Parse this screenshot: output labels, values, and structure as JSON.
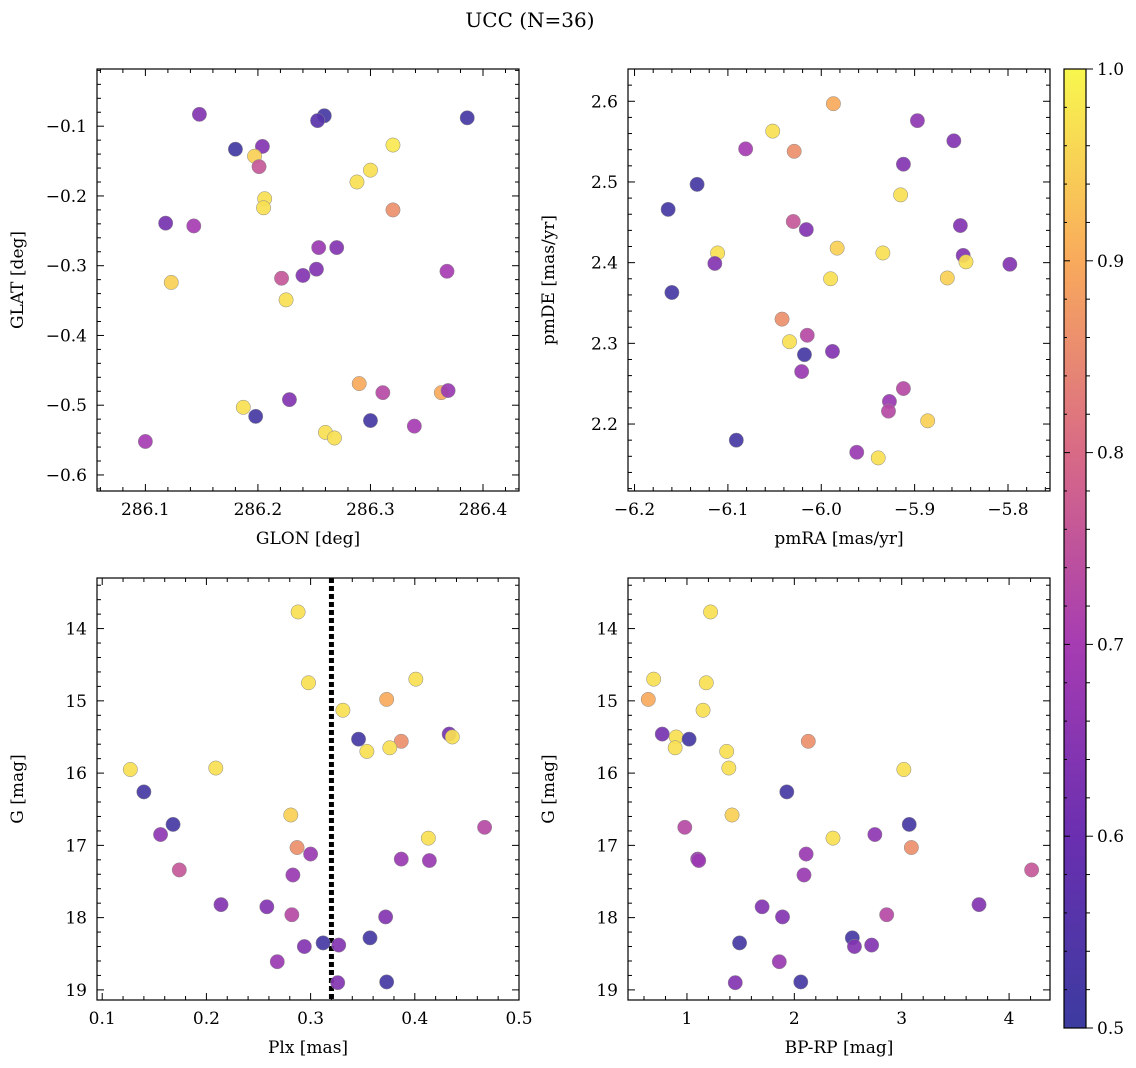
{
  "figure": {
    "title": "UCC (N=36)"
  },
  "colorbar": {
    "min": 0.5,
    "max": 1.0,
    "ticks": [
      0.5,
      0.6,
      0.7,
      0.8,
      0.9,
      1.0
    ],
    "tick_labels": [
      "0.5",
      "0.6",
      "0.7",
      "0.8",
      "0.9",
      "1.0"
    ],
    "colormap": "plasma"
  },
  "chart_data": [
    {
      "type": "scatter",
      "xlabel": "GLON [deg]",
      "ylabel": "GLAT [deg]",
      "xlim": [
        286.057,
        286.432
      ],
      "ylim": [
        -0.623,
        -0.018
      ],
      "y_inverted": false,
      "xticks": [
        286.1,
        286.2,
        286.3,
        286.4
      ],
      "xtick_labels": [
        "286.1",
        "286.2",
        "286.3",
        "286.4"
      ],
      "yticks": [
        -0.6,
        -0.5,
        -0.4,
        -0.3,
        -0.2,
        -0.1
      ],
      "ytick_labels": [
        "−0.6",
        "−0.5",
        "−0.4",
        "−0.3",
        "−0.2",
        "−0.1"
      ],
      "points": [
        {
          "x": 286.148,
          "y": -0.083,
          "c": 0.64
        },
        {
          "x": 286.259,
          "y": -0.085,
          "c": 0.52
        },
        {
          "x": 286.253,
          "y": -0.092,
          "c": 0.56
        },
        {
          "x": 286.386,
          "y": -0.088,
          "c": 0.52
        },
        {
          "x": 286.32,
          "y": -0.127,
          "c": 0.98
        },
        {
          "x": 286.18,
          "y": -0.133,
          "c": 0.51
        },
        {
          "x": 286.204,
          "y": -0.129,
          "c": 0.64
        },
        {
          "x": 286.197,
          "y": -0.143,
          "c": 0.95
        },
        {
          "x": 286.201,
          "y": -0.158,
          "c": 0.76
        },
        {
          "x": 286.3,
          "y": -0.163,
          "c": 0.97
        },
        {
          "x": 286.288,
          "y": -0.18,
          "c": 0.97
        },
        {
          "x": 286.206,
          "y": -0.204,
          "c": 0.97
        },
        {
          "x": 286.205,
          "y": -0.217,
          "c": 0.97
        },
        {
          "x": 286.32,
          "y": -0.22,
          "c": 0.86
        },
        {
          "x": 286.118,
          "y": -0.239,
          "c": 0.62
        },
        {
          "x": 286.143,
          "y": -0.243,
          "c": 0.7
        },
        {
          "x": 286.254,
          "y": -0.274,
          "c": 0.68
        },
        {
          "x": 286.27,
          "y": -0.274,
          "c": 0.64
        },
        {
          "x": 286.252,
          "y": -0.305,
          "c": 0.64
        },
        {
          "x": 286.24,
          "y": -0.314,
          "c": 0.64
        },
        {
          "x": 286.221,
          "y": -0.318,
          "c": 0.76
        },
        {
          "x": 286.368,
          "y": -0.308,
          "c": 0.7
        },
        {
          "x": 286.123,
          "y": -0.324,
          "c": 0.95
        },
        {
          "x": 286.225,
          "y": -0.349,
          "c": 0.97
        },
        {
          "x": 286.29,
          "y": -0.469,
          "c": 0.9
        },
        {
          "x": 286.311,
          "y": -0.482,
          "c": 0.73
        },
        {
          "x": 286.363,
          "y": -0.482,
          "c": 0.9
        },
        {
          "x": 286.369,
          "y": -0.479,
          "c": 0.68
        },
        {
          "x": 286.228,
          "y": -0.492,
          "c": 0.64
        },
        {
          "x": 286.187,
          "y": -0.503,
          "c": 0.97
        },
        {
          "x": 286.198,
          "y": -0.516,
          "c": 0.52
        },
        {
          "x": 286.3,
          "y": -0.522,
          "c": 0.52
        },
        {
          "x": 286.339,
          "y": -0.53,
          "c": 0.7
        },
        {
          "x": 286.26,
          "y": -0.539,
          "c": 0.97
        },
        {
          "x": 286.268,
          "y": -0.547,
          "c": 0.97
        },
        {
          "x": 286.1,
          "y": -0.552,
          "c": 0.7
        }
      ]
    },
    {
      "type": "scatter",
      "xlabel": "pmRA [mas/yr]",
      "ylabel": "pmDE [mas/yr]",
      "xlim": [
        -6.207,
        -5.755
      ],
      "ylim": [
        2.117,
        2.64
      ],
      "y_inverted": false,
      "xticks": [
        -6.2,
        -6.1,
        -6.0,
        -5.9,
        -5.8
      ],
      "xtick_labels": [
        "−6.2",
        "−6.1",
        "−6.0",
        "−5.9",
        "−5.8"
      ],
      "yticks": [
        2.2,
        2.3,
        2.4,
        2.5,
        2.6
      ],
      "ytick_labels": [
        "2.2",
        "2.3",
        "2.4",
        "2.5",
        "2.6"
      ],
      "points": [
        {
          "x": -5.987,
          "y": 2.597,
          "c": 0.9
        },
        {
          "x": -5.897,
          "y": 2.576,
          "c": 0.66
        },
        {
          "x": -6.052,
          "y": 2.563,
          "c": 0.97
        },
        {
          "x": -5.858,
          "y": 2.551,
          "c": 0.64
        },
        {
          "x": -6.081,
          "y": 2.541,
          "c": 0.7
        },
        {
          "x": -6.029,
          "y": 2.538,
          "c": 0.86
        },
        {
          "x": -5.912,
          "y": 2.522,
          "c": 0.64
        },
        {
          "x": -6.133,
          "y": 2.497,
          "c": 0.52
        },
        {
          "x": -5.915,
          "y": 2.484,
          "c": 0.97
        },
        {
          "x": -6.164,
          "y": 2.466,
          "c": 0.52
        },
        {
          "x": -6.03,
          "y": 2.451,
          "c": 0.76
        },
        {
          "x": -5.851,
          "y": 2.446,
          "c": 0.64
        },
        {
          "x": -6.016,
          "y": 2.441,
          "c": 0.64
        },
        {
          "x": -5.983,
          "y": 2.418,
          "c": 0.95
        },
        {
          "x": -6.111,
          "y": 2.412,
          "c": 0.97
        },
        {
          "x": -5.934,
          "y": 2.412,
          "c": 0.97
        },
        {
          "x": -5.848,
          "y": 2.409,
          "c": 0.64
        },
        {
          "x": -5.845,
          "y": 2.401,
          "c": 0.97
        },
        {
          "x": -6.114,
          "y": 2.399,
          "c": 0.64
        },
        {
          "x": -5.798,
          "y": 2.398,
          "c": 0.64
        },
        {
          "x": -5.99,
          "y": 2.38,
          "c": 0.97
        },
        {
          "x": -5.865,
          "y": 2.381,
          "c": 0.95
        },
        {
          "x": -6.16,
          "y": 2.363,
          "c": 0.52
        },
        {
          "x": -6.042,
          "y": 2.33,
          "c": 0.86
        },
        {
          "x": -6.015,
          "y": 2.31,
          "c": 0.73
        },
        {
          "x": -6.034,
          "y": 2.302,
          "c": 0.97
        },
        {
          "x": -5.988,
          "y": 2.29,
          "c": 0.64
        },
        {
          "x": -6.018,
          "y": 2.286,
          "c": 0.52
        },
        {
          "x": -6.021,
          "y": 2.265,
          "c": 0.68
        },
        {
          "x": -5.912,
          "y": 2.244,
          "c": 0.73
        },
        {
          "x": -5.927,
          "y": 2.228,
          "c": 0.68
        },
        {
          "x": -5.928,
          "y": 2.216,
          "c": 0.73
        },
        {
          "x": -5.886,
          "y": 2.204,
          "c": 0.95
        },
        {
          "x": -6.091,
          "y": 2.18,
          "c": 0.52
        },
        {
          "x": -5.962,
          "y": 2.165,
          "c": 0.68
        },
        {
          "x": -5.939,
          "y": 2.158,
          "c": 0.97
        }
      ]
    },
    {
      "type": "scatter",
      "xlabel": "Plx [mas]",
      "ylabel": "G [mag]",
      "xlim": [
        0.095,
        0.5
      ],
      "ylim": [
        13.3,
        19.14
      ],
      "y_inverted": true,
      "xticks": [
        0.1,
        0.2,
        0.3,
        0.4,
        0.5
      ],
      "xtick_labels": [
        "0.1",
        "0.2",
        "0.3",
        "0.4",
        "0.5"
      ],
      "yticks": [
        14,
        15,
        16,
        17,
        18,
        19
      ],
      "ytick_labels": [
        "14",
        "15",
        "16",
        "17",
        "18",
        "19"
      ],
      "vline": {
        "x": 0.32,
        "style": "dotted"
      },
      "points": [
        {
          "x": 0.288,
          "y": 13.77,
          "c": 0.97
        },
        {
          "x": 0.401,
          "y": 14.7,
          "c": 0.97
        },
        {
          "x": 0.298,
          "y": 14.75,
          "c": 0.97
        },
        {
          "x": 0.373,
          "y": 14.98,
          "c": 0.9
        },
        {
          "x": 0.331,
          "y": 15.13,
          "c": 0.97
        },
        {
          "x": 0.433,
          "y": 15.46,
          "c": 0.62
        },
        {
          "x": 0.436,
          "y": 15.5,
          "c": 0.97
        },
        {
          "x": 0.346,
          "y": 15.53,
          "c": 0.52
        },
        {
          "x": 0.387,
          "y": 15.56,
          "c": 0.86
        },
        {
          "x": 0.376,
          "y": 15.65,
          "c": 0.97
        },
        {
          "x": 0.354,
          "y": 15.7,
          "c": 0.97
        },
        {
          "x": 0.127,
          "y": 15.95,
          "c": 0.97
        },
        {
          "x": 0.209,
          "y": 15.93,
          "c": 0.97
        },
        {
          "x": 0.14,
          "y": 16.26,
          "c": 0.52
        },
        {
          "x": 0.281,
          "y": 16.58,
          "c": 0.95
        },
        {
          "x": 0.168,
          "y": 16.71,
          "c": 0.52
        },
        {
          "x": 0.467,
          "y": 16.75,
          "c": 0.73
        },
        {
          "x": 0.156,
          "y": 16.85,
          "c": 0.66
        },
        {
          "x": 0.413,
          "y": 16.9,
          "c": 0.97
        },
        {
          "x": 0.287,
          "y": 17.03,
          "c": 0.86
        },
        {
          "x": 0.3,
          "y": 17.12,
          "c": 0.68
        },
        {
          "x": 0.387,
          "y": 17.19,
          "c": 0.68
        },
        {
          "x": 0.414,
          "y": 17.21,
          "c": 0.68
        },
        {
          "x": 0.174,
          "y": 17.34,
          "c": 0.76
        },
        {
          "x": 0.283,
          "y": 17.41,
          "c": 0.68
        },
        {
          "x": 0.214,
          "y": 17.82,
          "c": 0.64
        },
        {
          "x": 0.258,
          "y": 17.85,
          "c": 0.64
        },
        {
          "x": 0.282,
          "y": 17.96,
          "c": 0.73
        },
        {
          "x": 0.372,
          "y": 17.99,
          "c": 0.64
        },
        {
          "x": 0.357,
          "y": 18.28,
          "c": 0.52
        },
        {
          "x": 0.312,
          "y": 18.35,
          "c": 0.52
        },
        {
          "x": 0.294,
          "y": 18.4,
          "c": 0.64
        },
        {
          "x": 0.327,
          "y": 18.38,
          "c": 0.64
        },
        {
          "x": 0.268,
          "y": 18.61,
          "c": 0.68
        },
        {
          "x": 0.326,
          "y": 18.9,
          "c": 0.64
        },
        {
          "x": 0.373,
          "y": 18.89,
          "c": 0.52
        }
      ]
    },
    {
      "type": "scatter",
      "xlabel": "BP-RP [mag]",
      "ylabel": "G [mag]",
      "xlim": [
        0.451,
        4.381
      ],
      "ylim": [
        13.3,
        19.14
      ],
      "y_inverted": true,
      "xticks": [
        1,
        2,
        3,
        4
      ],
      "xtick_labels": [
        "1",
        "2",
        "3",
        "4"
      ],
      "yticks": [
        14,
        15,
        16,
        17,
        18,
        19
      ],
      "ytick_labels": [
        "14",
        "15",
        "16",
        "17",
        "18",
        "19"
      ],
      "points": [
        {
          "x": 1.22,
          "y": 13.77,
          "c": 0.97
        },
        {
          "x": 0.69,
          "y": 14.7,
          "c": 0.97
        },
        {
          "x": 1.18,
          "y": 14.75,
          "c": 0.97
        },
        {
          "x": 0.64,
          "y": 14.98,
          "c": 0.9
        },
        {
          "x": 1.15,
          "y": 15.13,
          "c": 0.97
        },
        {
          "x": 0.77,
          "y": 15.46,
          "c": 0.62
        },
        {
          "x": 0.9,
          "y": 15.5,
          "c": 0.97
        },
        {
          "x": 1.02,
          "y": 15.53,
          "c": 0.52
        },
        {
          "x": 2.13,
          "y": 15.56,
          "c": 0.86
        },
        {
          "x": 0.89,
          "y": 15.65,
          "c": 0.97
        },
        {
          "x": 1.37,
          "y": 15.7,
          "c": 0.97
        },
        {
          "x": 3.02,
          "y": 15.95,
          "c": 0.97
        },
        {
          "x": 1.39,
          "y": 15.93,
          "c": 0.97
        },
        {
          "x": 1.93,
          "y": 16.26,
          "c": 0.52
        },
        {
          "x": 1.42,
          "y": 16.58,
          "c": 0.95
        },
        {
          "x": 3.07,
          "y": 16.71,
          "c": 0.52
        },
        {
          "x": 0.98,
          "y": 16.75,
          "c": 0.73
        },
        {
          "x": 2.75,
          "y": 16.85,
          "c": 0.66
        },
        {
          "x": 2.36,
          "y": 16.9,
          "c": 0.97
        },
        {
          "x": 3.09,
          "y": 17.03,
          "c": 0.86
        },
        {
          "x": 2.11,
          "y": 17.12,
          "c": 0.68
        },
        {
          "x": 1.1,
          "y": 17.19,
          "c": 0.68
        },
        {
          "x": 1.11,
          "y": 17.21,
          "c": 0.68
        },
        {
          "x": 4.21,
          "y": 17.34,
          "c": 0.76
        },
        {
          "x": 2.09,
          "y": 17.41,
          "c": 0.68
        },
        {
          "x": 3.72,
          "y": 17.82,
          "c": 0.64
        },
        {
          "x": 1.7,
          "y": 17.85,
          "c": 0.64
        },
        {
          "x": 2.86,
          "y": 17.96,
          "c": 0.73
        },
        {
          "x": 1.89,
          "y": 17.99,
          "c": 0.64
        },
        {
          "x": 2.54,
          "y": 18.28,
          "c": 0.52
        },
        {
          "x": 1.49,
          "y": 18.35,
          "c": 0.52
        },
        {
          "x": 2.56,
          "y": 18.4,
          "c": 0.64
        },
        {
          "x": 2.72,
          "y": 18.38,
          "c": 0.64
        },
        {
          "x": 1.86,
          "y": 18.61,
          "c": 0.68
        },
        {
          "x": 1.45,
          "y": 18.9,
          "c": 0.64
        },
        {
          "x": 2.06,
          "y": 18.89,
          "c": 0.52
        }
      ]
    }
  ]
}
